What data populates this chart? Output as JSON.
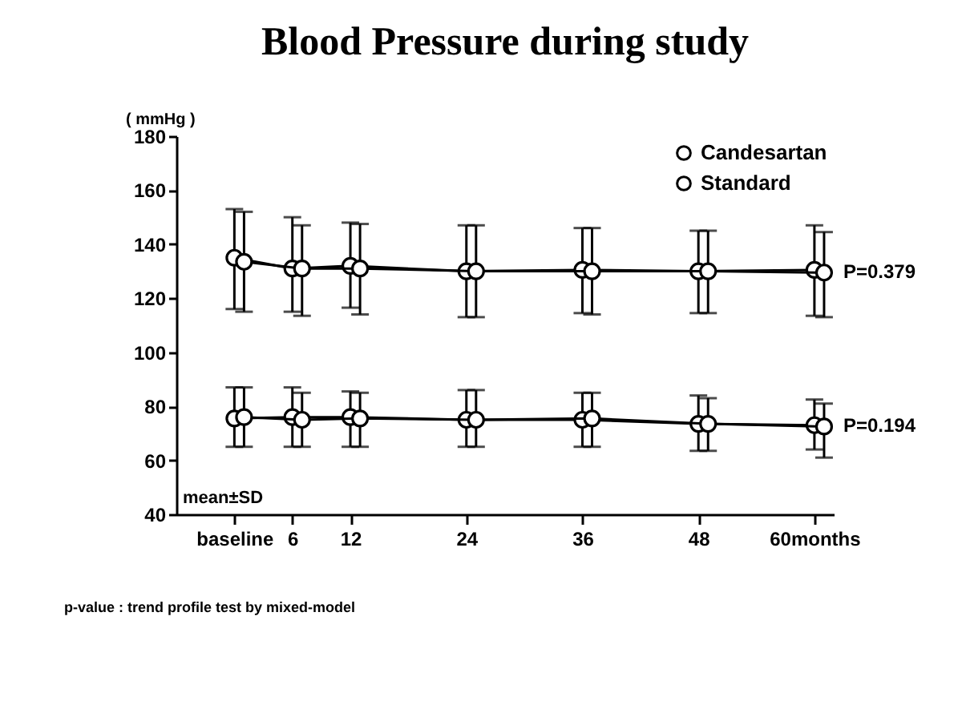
{
  "chart_data": {
    "type": "line",
    "title": "Blood Pressure during study",
    "ylabel": "( mmHg )",
    "xlim": [
      -6,
      62
    ],
    "xticks": [
      {
        "value": 0,
        "label": "baseline"
      },
      6,
      12,
      24,
      36,
      48,
      {
        "value": 60,
        "label": "60months"
      }
    ],
    "ylim": [
      40,
      180
    ],
    "yticks": [
      40,
      60,
      80,
      100,
      120,
      140,
      160,
      180
    ],
    "marker": "circle",
    "legend": "top right",
    "series": [
      {
        "name": "Candesartan",
        "color": "#000000",
        "x": [
          0,
          6,
          12,
          24,
          36,
          48,
          60
        ],
        "values": [
          135,
          131,
          132,
          130,
          130.5,
          130,
          130.5
        ],
        "errors": [
          [
            116,
            153
          ],
          [
            115,
            150
          ],
          [
            116.5,
            148
          ],
          [
            113,
            147
          ],
          [
            114.5,
            146
          ],
          [
            114.5,
            145
          ],
          [
            113.5,
            147
          ]
        ]
      },
      {
        "name": "Standard",
        "color": "#000000",
        "x": [
          1,
          7,
          13,
          25,
          37,
          49,
          61
        ],
        "values": [
          133.5,
          131,
          131,
          130,
          130,
          130,
          129.5
        ],
        "errors": [
          [
            115,
            152
          ],
          [
            113.5,
            147
          ],
          [
            114,
            147.5
          ],
          [
            113,
            147
          ],
          [
            114,
            146
          ],
          [
            114.5,
            145
          ],
          [
            113,
            144.5
          ]
        ]
      },
      {
        "color": "#000000",
        "x": [
          0,
          6,
          12,
          24,
          36,
          48,
          60
        ],
        "values": [
          75.5,
          76,
          76,
          75,
          75,
          73.5,
          73
        ],
        "errors": [
          [
            65,
            87
          ],
          [
            65,
            87
          ],
          [
            65,
            85.5
          ],
          [
            65,
            86
          ],
          [
            65,
            85
          ],
          [
            63.5,
            84
          ],
          [
            64,
            82.5
          ]
        ]
      },
      {
        "color": "#000000",
        "x": [
          1,
          7,
          13,
          25,
          37,
          49,
          61
        ],
        "values": [
          76,
          75,
          75.5,
          75,
          75.5,
          73.5,
          72.5
        ],
        "errors": [
          [
            65,
            87
          ],
          [
            65,
            85
          ],
          [
            65,
            85
          ],
          [
            65,
            86
          ],
          [
            65,
            85
          ],
          [
            63.5,
            83
          ],
          [
            61,
            81
          ]
        ]
      }
    ],
    "annotations": [
      "mean±SD",
      "p-value : trend profile test by mixed-model",
      {
        "text": "P=0.379",
        "x": 61,
        "y": 130
      },
      {
        "text": "P=0.194",
        "x": 61,
        "y": 73
      }
    ]
  }
}
